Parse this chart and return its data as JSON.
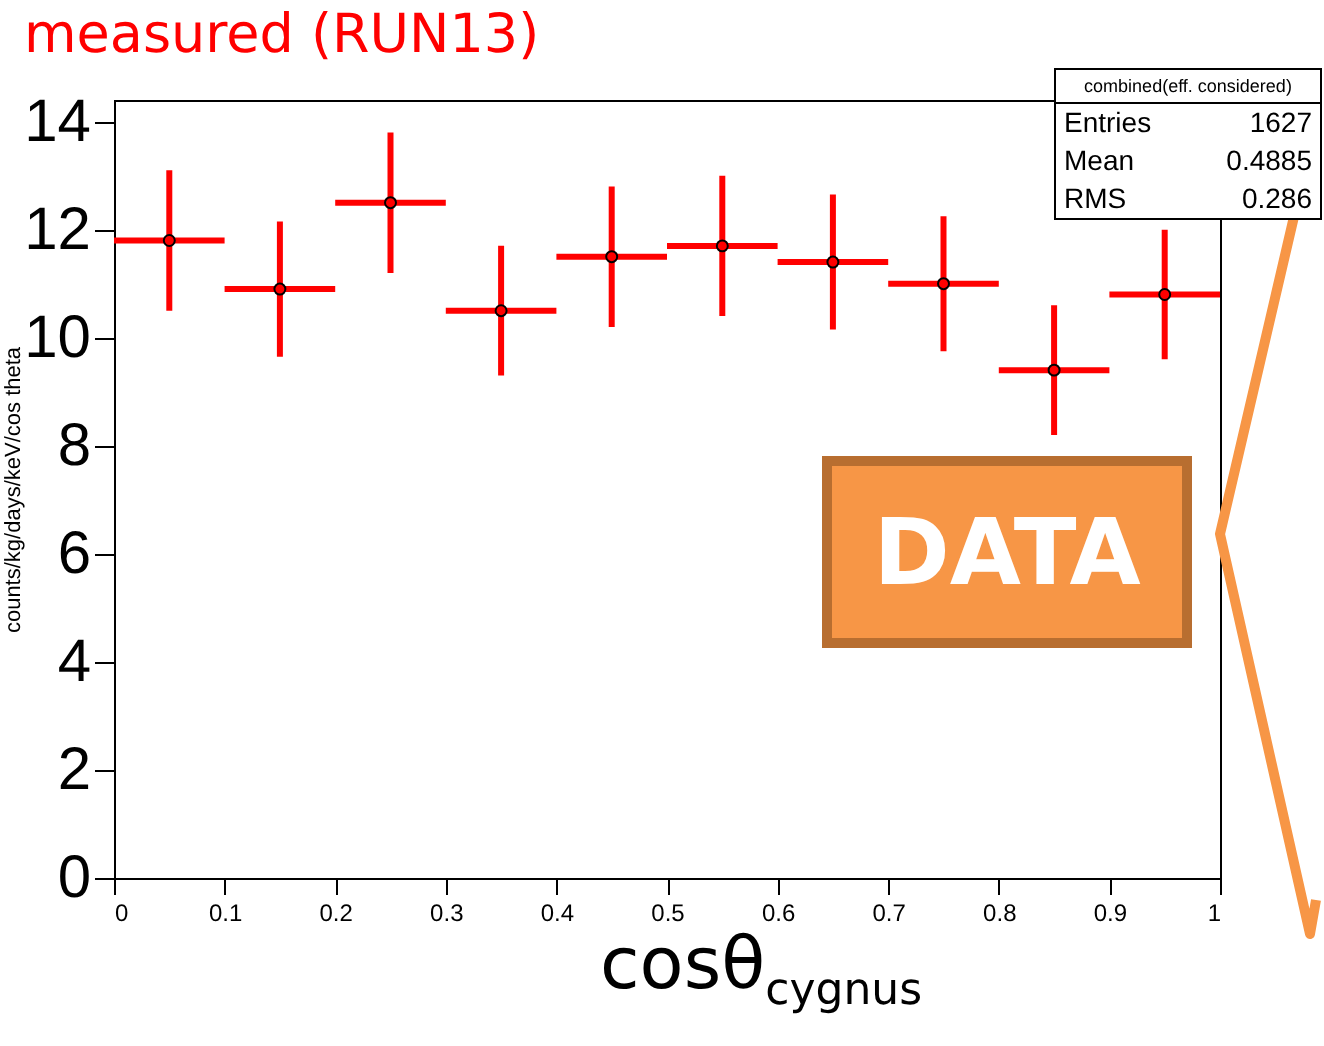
{
  "chart_data": {
    "type": "scatter",
    "title": "measured (RUN13)",
    "xlabel": "cosθ$_{cygnus}$",
    "ylabel": "counts/kg/days/keV/cos theta",
    "marker": "circle",
    "x": [
      0.05,
      0.15,
      0.25,
      0.35,
      0.45,
      0.55,
      0.65,
      0.75,
      0.85,
      0.95
    ],
    "series": [
      {
        "color": "#ff0000",
        "values": [
          11.8,
          10.9,
          12.5,
          10.5,
          11.5,
          11.7,
          11.4,
          11.0,
          9.4,
          10.8
        ],
        "errors": [
          1.3,
          1.25,
          1.3,
          1.2,
          1.3,
          1.3,
          1.25,
          1.25,
          1.2,
          1.2
        ],
        "xerrors": [
          0.05,
          0.05,
          0.05,
          0.05,
          0.05,
          0.05,
          0.05,
          0.05,
          0.05,
          0.05
        ]
      }
    ],
    "xlim": [
      0,
      1
    ],
    "xticks": [
      0,
      0.1,
      0.2,
      0.3,
      0.4,
      0.5,
      0.6,
      0.7,
      0.8,
      0.9,
      1
    ],
    "ylim": [
      0,
      14.4
    ],
    "yticks": [
      0,
      2,
      4,
      6,
      8,
      10,
      12,
      14
    ],
    "annotations": [
      "combined(eff. considered)",
      "Entries",
      "1627",
      "Mean",
      "0.4885",
      "RMS",
      "0.286",
      "DATA"
    ]
  }
}
